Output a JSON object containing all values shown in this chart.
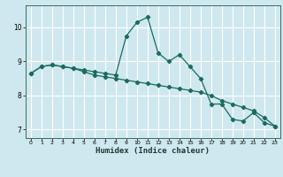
{
  "xlabel": "Humidex (Indice chaleur)",
  "background_color": "#cfe8ef",
  "grid_color": "#ffffff",
  "line_color": "#1a6b5e",
  "xlim": [
    -0.5,
    23.5
  ],
  "ylim": [
    6.75,
    10.65
  ],
  "xticks": [
    0,
    1,
    2,
    3,
    4,
    5,
    6,
    7,
    8,
    9,
    10,
    11,
    12,
    13,
    14,
    15,
    16,
    17,
    18,
    19,
    20,
    21,
    22,
    23
  ],
  "yticks": [
    7,
    8,
    9,
    10
  ],
  "line1_x": [
    0,
    1,
    2,
    3,
    4,
    5,
    6,
    7,
    8,
    9,
    10,
    11,
    12,
    13,
    14,
    15,
    16,
    17,
    18,
    19,
    20,
    21,
    22,
    23
  ],
  "line1_y": [
    8.65,
    8.85,
    8.9,
    8.85,
    8.8,
    8.75,
    8.7,
    8.65,
    8.6,
    9.75,
    10.15,
    10.3,
    9.25,
    9.0,
    9.2,
    8.85,
    8.5,
    7.75,
    7.75,
    7.3,
    7.25,
    7.5,
    7.2,
    7.1
  ],
  "line2_x": [
    0,
    1,
    2,
    3,
    4,
    5,
    6,
    7,
    8,
    9,
    10,
    11,
    12,
    13,
    14,
    15,
    16,
    17,
    18,
    19,
    20,
    21,
    22,
    23
  ],
  "line2_y": [
    8.65,
    8.85,
    8.9,
    8.85,
    8.8,
    8.7,
    8.6,
    8.55,
    8.5,
    8.45,
    8.4,
    8.35,
    8.3,
    8.25,
    8.2,
    8.15,
    8.1,
    8.0,
    7.85,
    7.75,
    7.65,
    7.55,
    7.35,
    7.1
  ]
}
